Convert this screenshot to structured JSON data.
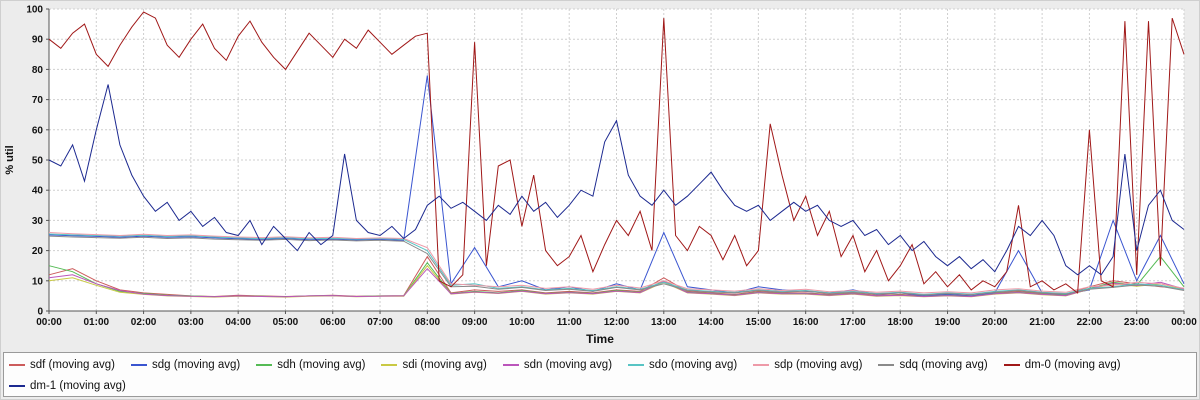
{
  "chart_data": {
    "type": "line",
    "xlabel": "Time",
    "ylabel": "% util",
    "ylim": [
      0,
      100
    ],
    "grid": true,
    "legend_position": "bottom",
    "x_ticks": [
      "00:00",
      "01:00",
      "02:00",
      "03:00",
      "04:00",
      "05:00",
      "06:00",
      "07:00",
      "08:00",
      "09:00",
      "10:00",
      "11:00",
      "12:00",
      "13:00",
      "14:00",
      "15:00",
      "16:00",
      "17:00",
      "18:00",
      "19:00",
      "20:00",
      "21:00",
      "22:00",
      "23:00",
      "00:00"
    ],
    "y_ticks": [
      0,
      10,
      20,
      30,
      40,
      50,
      60,
      70,
      80,
      90,
      100
    ],
    "series": [
      {
        "name": "sdf",
        "label": "sdf (moving avg)",
        "color": "#cc5c5c",
        "values": [
          12,
          14,
          10,
          7,
          6,
          5.5,
          5,
          4.8,
          5.2,
          5,
          4.8,
          5,
          5.2,
          4.9,
          5,
          5.1,
          18,
          6,
          7,
          6.5,
          7,
          6,
          6.5,
          6,
          7,
          6.5,
          11,
          6.5,
          6,
          5.5,
          6.5,
          6,
          6,
          5.5,
          6,
          5.2,
          5.5,
          5,
          5.5,
          5,
          6,
          6.5,
          5.8,
          5.5,
          8,
          10,
          9,
          8,
          7.5
        ]
      },
      {
        "name": "sdg",
        "label": "sdg (moving avg)",
        "color": "#3a55d0",
        "values": [
          25.2,
          24.9,
          24.7,
          24.4,
          24.8,
          24.4,
          24.6,
          24.2,
          23.9,
          23.7,
          24,
          23.6,
          23.8,
          23.5,
          23.7,
          23.4,
          78,
          9,
          21,
          8,
          10,
          7,
          8,
          6.5,
          9,
          7,
          26,
          8,
          7,
          6,
          8,
          7,
          6.5,
          6,
          7,
          5.5,
          6,
          5,
          5.5,
          5,
          6,
          20,
          6,
          5.5,
          7,
          30,
          10,
          25,
          9
        ]
      },
      {
        "name": "sdh",
        "label": "sdh (moving avg)",
        "color": "#55bb55",
        "values": [
          15,
          13,
          9,
          6.5,
          5.8,
          5.2,
          5,
          4.7,
          5,
          4.9,
          4.7,
          5,
          5.1,
          4.8,
          5,
          5,
          16,
          5.8,
          6.5,
          6,
          6.8,
          5.8,
          6.2,
          5.8,
          6.8,
          6.2,
          10,
          6.2,
          5.8,
          5.3,
          6.2,
          5.8,
          5.8,
          5.3,
          5.8,
          5,
          5.3,
          4.8,
          5.2,
          4.8,
          5.8,
          6.2,
          5.6,
          5.2,
          7.5,
          9.5,
          8.5,
          18,
          8
        ]
      },
      {
        "name": "sdi",
        "label": "sdi (moving avg)",
        "color": "#c9c944",
        "values": [
          10,
          11,
          8.5,
          6.2,
          5.5,
          5,
          4.8,
          4.6,
          4.9,
          4.8,
          4.6,
          4.9,
          5,
          4.7,
          4.9,
          4.9,
          15,
          5.6,
          6.2,
          5.8,
          6.5,
          5.6,
          6,
          5.6,
          6.5,
          6,
          9.5,
          6,
          5.6,
          5.1,
          6,
          5.6,
          5.6,
          5.1,
          5.6,
          4.9,
          5.1,
          4.7,
          5,
          4.7,
          5.6,
          6,
          5.4,
          5,
          7.2,
          9,
          8.2,
          9,
          7.2
        ]
      },
      {
        "name": "sdn",
        "label": "sdn (moving avg)",
        "color": "#bb55bb",
        "values": [
          11,
          12,
          9,
          6.8,
          5.6,
          5.1,
          4.9,
          4.7,
          5,
          4.8,
          4.7,
          5,
          5.1,
          4.8,
          4.9,
          5,
          14,
          5.7,
          6.3,
          5.9,
          6.6,
          5.7,
          6.1,
          5.7,
          6.6,
          6.1,
          9.8,
          6.1,
          5.7,
          5.2,
          6.1,
          5.7,
          5.7,
          5.2,
          5.7,
          5,
          5.2,
          4.8,
          5.1,
          4.8,
          5.7,
          6.1,
          5.5,
          5.1,
          7.3,
          9.2,
          8.4,
          9.5,
          7.3
        ]
      },
      {
        "name": "sdo",
        "label": "sdo (moving avg)",
        "color": "#58c4c4",
        "values": [
          25.5,
          25.2,
          25,
          24.8,
          25.1,
          24.7,
          24.9,
          24.5,
          24.2,
          24,
          24.3,
          23.9,
          24.1,
          23.8,
          24,
          23.7,
          20,
          8.5,
          9,
          7.5,
          8,
          7,
          7.5,
          6.8,
          8,
          7.2,
          9.5,
          7,
          6.5,
          6.2,
          7,
          6.5,
          6.8,
          6,
          6.5,
          5.8,
          6.2,
          5.5,
          6,
          5.6,
          6.5,
          7,
          6.2,
          5.8,
          7.5,
          8,
          9,
          8.5,
          7
        ]
      },
      {
        "name": "sdp",
        "label": "sdp (moving avg)",
        "color": "#ee9aa8",
        "values": [
          26,
          25.6,
          25.3,
          25,
          25.4,
          25,
          25.2,
          24.8,
          24.5,
          24.3,
          24.6,
          24.2,
          24.4,
          24,
          24.2,
          24,
          21,
          9,
          8.5,
          8,
          8.5,
          7.5,
          8,
          7.2,
          8.5,
          7.6,
          10,
          7.4,
          7,
          6.6,
          7.4,
          6.8,
          7.2,
          6.4,
          6.8,
          6.2,
          6.6,
          6,
          6.4,
          6,
          7,
          7.4,
          6.6,
          6.2,
          8,
          8.5,
          9.5,
          9,
          7.5
        ]
      },
      {
        "name": "sdq",
        "label": "sdq (moving avg)",
        "color": "#8a8a8a",
        "values": [
          24.8,
          24.5,
          24.3,
          24.1,
          24.4,
          24,
          24.2,
          23.8,
          23.6,
          23.4,
          23.7,
          23.3,
          23.5,
          23.2,
          23.4,
          23.1,
          19,
          8,
          8.2,
          7.2,
          7.8,
          6.8,
          7.2,
          6.5,
          7.8,
          7,
          9,
          6.8,
          6.3,
          6,
          6.8,
          6.2,
          6.6,
          5.8,
          6.2,
          5.6,
          6,
          5.3,
          5.8,
          5.4,
          6.2,
          6.8,
          6,
          5.6,
          7.2,
          7.8,
          8.6,
          8.2,
          6.8
        ]
      },
      {
        "name": "dm-0",
        "label": "dm-0 (moving avg)",
        "color": "#a01818",
        "values": [
          90,
          87,
          92,
          95,
          85,
          81,
          88,
          94,
          99,
          97,
          88,
          84,
          90,
          95,
          87,
          83,
          91,
          96,
          89,
          84,
          80,
          86,
          92,
          88,
          84,
          90,
          87,
          93,
          89,
          85,
          88,
          91,
          92,
          10,
          8,
          12,
          89,
          15,
          48,
          50,
          28,
          45,
          20,
          15,
          18,
          25,
          13,
          22,
          30,
          25,
          33,
          20,
          97,
          25,
          20,
          28,
          25,
          17,
          25,
          15,
          20,
          62,
          45,
          30,
          38,
          25,
          33,
          18,
          25,
          13,
          20,
          10,
          15,
          22,
          9,
          13,
          8,
          12,
          7,
          10,
          8,
          13,
          35,
          8,
          10,
          7,
          9,
          6,
          60,
          10,
          8,
          96,
          12,
          96,
          15,
          97,
          85
        ]
      },
      {
        "name": "dm-1",
        "label": "dm-1 (moving avg)",
        "color": "#1c2990",
        "values": [
          50,
          48,
          55,
          43,
          60,
          75,
          55,
          45,
          38,
          33,
          36,
          30,
          33,
          28,
          31,
          26,
          25,
          30,
          22,
          28,
          24,
          20,
          26,
          22,
          25,
          52,
          30,
          26,
          25,
          28,
          24,
          27,
          35,
          38,
          34,
          36,
          33,
          30,
          35,
          32,
          38,
          33,
          36,
          31,
          35,
          40,
          38,
          56,
          63,
          45,
          38,
          35,
          40,
          35,
          38,
          42,
          46,
          40,
          35,
          33,
          35,
          30,
          33,
          36,
          33,
          35,
          30,
          28,
          30,
          25,
          27,
          22,
          25,
          20,
          23,
          18,
          15,
          18,
          14,
          17,
          13,
          20,
          28,
          25,
          30,
          25,
          15,
          12,
          15,
          12,
          18,
          52,
          20,
          35,
          40,
          30,
          27
        ]
      }
    ]
  }
}
